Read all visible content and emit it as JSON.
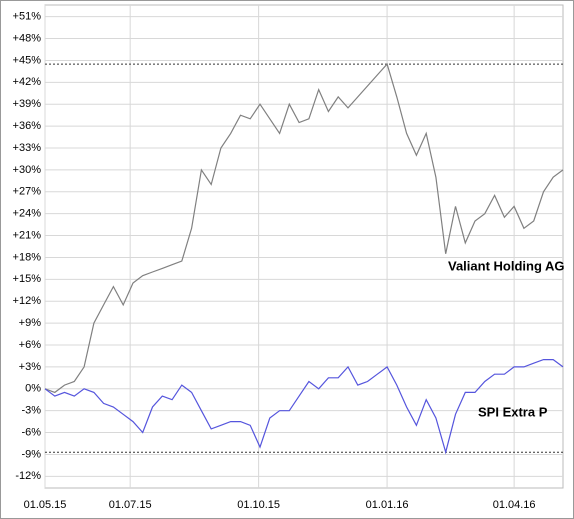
{
  "chart_data": {
    "type": "line",
    "xlim": [
      "01.05.15",
      "06.05.16"
    ],
    "xticks": [
      "01.05.15",
      "01.07.15",
      "01.10.15",
      "01.01.16",
      "01.04.16"
    ],
    "ylim": [
      -13.6,
      52.6
    ],
    "yticks": [
      {
        "value": -12,
        "label": "-12%"
      },
      {
        "value": -9,
        "label": "-9%"
      },
      {
        "value": -6,
        "label": "-6%"
      },
      {
        "value": -3,
        "label": "-3%"
      },
      {
        "value": 0,
        "label": "0%"
      },
      {
        "value": 3,
        "label": "+3%"
      },
      {
        "value": 6,
        "label": "+6%"
      },
      {
        "value": 9,
        "label": "+9%"
      },
      {
        "value": 12,
        "label": "+12%"
      },
      {
        "value": 15,
        "label": "+15%"
      },
      {
        "value": 18,
        "label": "+18%"
      },
      {
        "value": 21,
        "label": "+21%"
      },
      {
        "value": 24,
        "label": "+24%"
      },
      {
        "value": 27,
        "label": "+27%"
      },
      {
        "value": 30,
        "label": "+30%"
      },
      {
        "value": 33,
        "label": "+33%"
      },
      {
        "value": 36,
        "label": "+36%"
      },
      {
        "value": 39,
        "label": "+39%"
      },
      {
        "value": 42,
        "label": "+42%"
      },
      {
        "value": 45,
        "label": "+45%"
      },
      {
        "value": 48,
        "label": "+48%"
      },
      {
        "value": 51,
        "label": "+51%"
      }
    ],
    "grid": true,
    "reference_lines": [
      44.5,
      -8.7
    ],
    "x": [
      "01.05.15",
      "08.05.15",
      "15.05.15",
      "22.05.15",
      "29.05.15",
      "05.06.15",
      "12.06.15",
      "19.06.15",
      "26.06.15",
      "03.07.15",
      "10.07.15",
      "17.07.15",
      "24.07.15",
      "31.07.15",
      "07.08.15",
      "14.08.15",
      "21.08.15",
      "28.08.15",
      "04.09.15",
      "11.09.15",
      "18.09.15",
      "25.09.15",
      "02.10.15",
      "09.10.15",
      "16.10.15",
      "23.10.15",
      "30.10.15",
      "06.11.15",
      "13.11.15",
      "20.11.15",
      "27.11.15",
      "04.12.15",
      "11.12.15",
      "18.12.15",
      "25.12.15",
      "01.01.16",
      "08.01.16",
      "15.01.16",
      "22.01.16",
      "29.01.16",
      "05.02.16",
      "12.02.16",
      "19.02.16",
      "26.02.16",
      "04.03.16",
      "11.03.16",
      "18.03.16",
      "25.03.16",
      "01.04.16",
      "08.04.16",
      "15.04.16",
      "22.04.16",
      "29.04.16",
      "06.05.16"
    ],
    "series": [
      {
        "name": "Valiant Holding AG",
        "color": "#808080",
        "values": [
          0,
          -0.5,
          0.5,
          1,
          3,
          9,
          11.5,
          14,
          11.5,
          14.5,
          15.5,
          16,
          16.5,
          17,
          17.5,
          22,
          30,
          28,
          33,
          35,
          37.5,
          37,
          39,
          37,
          35,
          39,
          36.5,
          37,
          41,
          38,
          40,
          38.5,
          40,
          41.5,
          43,
          44.5,
          40,
          35,
          32,
          35,
          29,
          18.5,
          25,
          20,
          23,
          24,
          26.5,
          23.5,
          25,
          22,
          23,
          27,
          29,
          30
        ]
      },
      {
        "name": "SPI Extra P",
        "color": "#5555dd",
        "values": [
          0,
          -1,
          -0.5,
          -1,
          0,
          -0.5,
          -2,
          -2.5,
          -3.5,
          -4.5,
          -6,
          -2.5,
          -1,
          -1.5,
          0.5,
          -0.5,
          -3,
          -5.5,
          -5,
          -4.5,
          -4.5,
          -5,
          -8,
          -4,
          -3,
          -3,
          -1,
          1,
          0,
          1.5,
          1.5,
          3,
          0.5,
          1,
          2,
          3,
          0.5,
          -2.5,
          -5,
          -1.5,
          -4,
          -8.7,
          -3.5,
          -0.5,
          -0.5,
          1,
          2,
          2,
          3,
          3,
          3.5,
          4,
          4,
          3
        ]
      }
    ]
  }
}
